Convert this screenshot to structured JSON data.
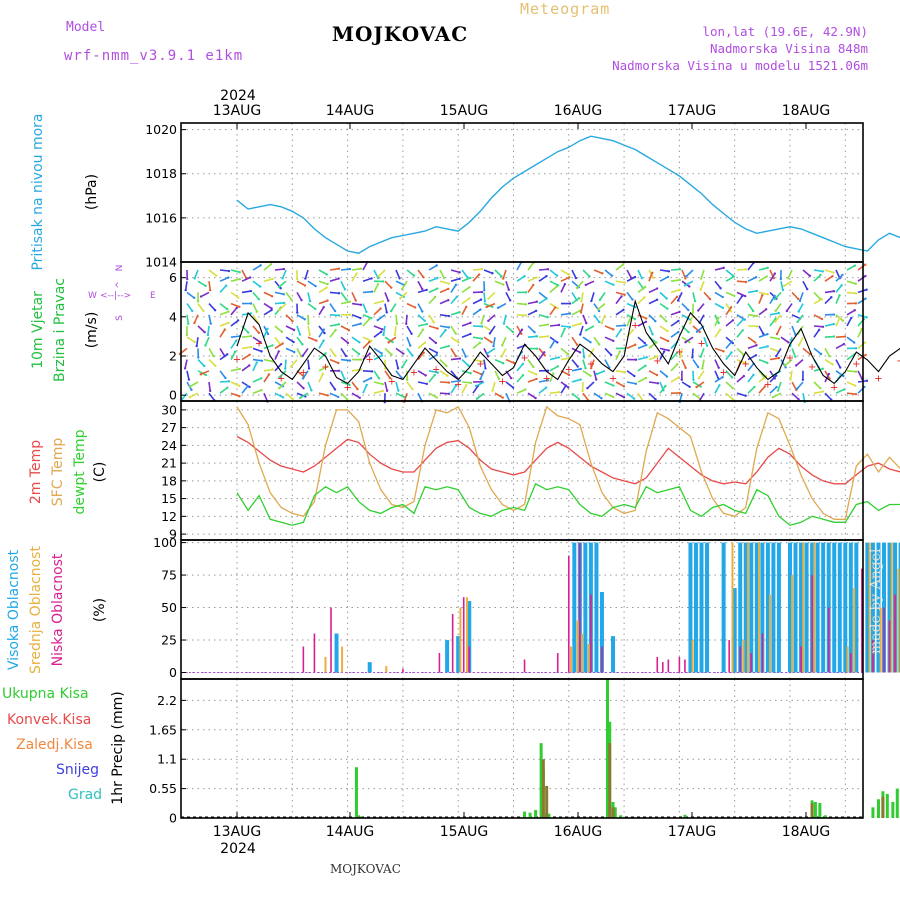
{
  "header": {
    "title": "MOJKOVAC",
    "subtitle": "Meteogram",
    "model_label": "Model",
    "model_name": "wrf-nmm_v3.9.1 e1km",
    "info_lines": [
      "lon,lat (19.6E, 42.9N)",
      "Nadmorska Visina 848m",
      "Nadmorska Visina u modelu 1521.06m"
    ]
  },
  "footer": "MOJKOVAC",
  "watermark": "made by Angel",
  "colors": {
    "pressure": "#29a8e0",
    "temp2m": "#e84a4a",
    "sfc": "#e0a850",
    "dewpt": "#30d030",
    "cloud_high": "#22a8e8",
    "cloud_mid": "#e8b040",
    "cloud_low": "#d82090",
    "precip_total": "#30cc30",
    "precip_conv": "#e84a4a",
    "precip_frozen": "#f08840",
    "snow": "#4040e0",
    "grad": "#30c0c0"
  },
  "chart_data": [
    {
      "type": "line",
      "panel": "pressure",
      "title": "",
      "ylabel_lines": [
        "Pritisak na nivou mora",
        "(hPa)"
      ],
      "x_labels_top": [
        "13AUG",
        "14AUG",
        "15AUG",
        "16AUG",
        "17AUG",
        "18AUG"
      ],
      "year_top": "2024",
      "ylim": [
        1014,
        1020.3
      ],
      "yticks": [
        "1014",
        "1016",
        "1018",
        "1020"
      ],
      "series": [
        {
          "x_days": [
            0,
            0.1,
            0.2,
            0.3,
            0.4,
            0.5,
            0.6,
            0.7,
            0.8,
            0.9,
            1.0,
            1.1,
            1.2,
            1.3,
            1.4,
            1.5,
            1.6,
            1.7,
            1.8,
            1.9,
            2.0,
            2.1,
            2.2,
            2.3,
            2.4,
            2.5,
            2.6,
            2.7,
            2.8,
            2.9,
            3.0,
            3.1,
            3.2,
            3.3,
            3.4,
            3.5,
            3.6,
            3.7,
            3.8,
            3.9,
            4.0,
            4.1,
            4.2,
            4.3,
            4.4,
            4.5,
            4.6,
            4.7,
            4.8,
            4.9,
            5.0,
            5.1,
            5.2,
            5.3,
            5.4,
            5.5,
            5.6,
            5.7,
            5.8,
            5.9,
            6.0
          ],
          "values": [
            1016.8,
            1016.4,
            1016.5,
            1016.6,
            1016.5,
            1016.3,
            1016.0,
            1015.5,
            1015.1,
            1014.8,
            1014.5,
            1014.4,
            1014.7,
            1014.9,
            1015.1,
            1015.2,
            1015.3,
            1015.4,
            1015.6,
            1015.5,
            1015.4,
            1015.8,
            1016.3,
            1016.9,
            1017.4,
            1017.8,
            1018.1,
            1018.4,
            1018.7,
            1019.0,
            1019.2,
            1019.5,
            1019.7,
            1019.6,
            1019.5,
            1019.3,
            1019.1,
            1018.8,
            1018.5,
            1018.2,
            1017.9,
            1017.5,
            1017.1,
            1016.6,
            1016.2,
            1015.8,
            1015.5,
            1015.3,
            1015.4,
            1015.5,
            1015.6,
            1015.5,
            1015.3,
            1015.1,
            1014.9,
            1014.7,
            1014.6,
            1014.5,
            1015.0,
            1015.3,
            1015.1
          ]
        }
      ]
    },
    {
      "type": "line",
      "panel": "wind",
      "title": "",
      "ylabel_lines": [
        "10m Vjetar",
        "Brzina i Pravac",
        "(m/s)"
      ],
      "compass_labels": [
        "W",
        "<--|-->",
        "E",
        "N",
        "^",
        "S"
      ],
      "ylim": [
        -0.3,
        6.8
      ],
      "yticks": [
        "0",
        "2",
        "4",
        "6"
      ],
      "series": [
        {
          "name": "brzina",
          "x_days": [
            0,
            0.1,
            0.2,
            0.3,
            0.4,
            0.5,
            0.6,
            0.7,
            0.8,
            0.9,
            1.0,
            1.1,
            1.2,
            1.3,
            1.4,
            1.5,
            1.6,
            1.7,
            1.8,
            1.9,
            2.0,
            2.1,
            2.2,
            2.3,
            2.4,
            2.5,
            2.6,
            2.7,
            2.8,
            2.9,
            3.0,
            3.1,
            3.2,
            3.3,
            3.4,
            3.5,
            3.6,
            3.7,
            3.8,
            3.9,
            4.0,
            4.1,
            4.2,
            4.3,
            4.4,
            4.5,
            4.6,
            4.7,
            4.8,
            4.9,
            5.0,
            5.1,
            5.2,
            5.3,
            5.4,
            5.5,
            5.6,
            5.7,
            5.8,
            5.9,
            6.0
          ],
          "values": [
            2.5,
            4.2,
            3.6,
            2.0,
            1.2,
            0.8,
            1.6,
            2.4,
            2.0,
            0.9,
            0.6,
            1.2,
            2.5,
            1.8,
            1.0,
            0.8,
            1.6,
            2.4,
            1.8,
            1.2,
            0.8,
            1.4,
            2.2,
            1.6,
            1.0,
            1.4,
            2.6,
            2.0,
            1.2,
            0.8,
            1.8,
            2.6,
            2.2,
            1.6,
            1.2,
            2.0,
            4.8,
            3.2,
            2.4,
            1.6,
            3.0,
            4.2,
            3.6,
            2.4,
            1.6,
            1.0,
            2.2,
            1.4,
            0.8,
            1.2,
            2.6,
            3.4,
            2.0,
            1.0,
            0.6,
            1.2,
            2.2,
            1.8,
            1.2,
            2.0,
            2.4
          ]
        }
      ]
    },
    {
      "type": "line",
      "panel": "temperature",
      "title": "",
      "ylabel_lines": [
        "2m Temp",
        "SFC Temp",
        "dewpt Temp",
        "(C)"
      ],
      "ylim": [
        8,
        31.5
      ],
      "yticks": [
        "9",
        "12",
        "15",
        "18",
        "21",
        "24",
        "27",
        "30"
      ],
      "series": [
        {
          "name": "2m Temp",
          "x_days": [
            0,
            0.1,
            0.2,
            0.3,
            0.4,
            0.5,
            0.6,
            0.7,
            0.8,
            0.9,
            1.0,
            1.1,
            1.2,
            1.3,
            1.4,
            1.5,
            1.6,
            1.7,
            1.8,
            1.9,
            2.0,
            2.1,
            2.2,
            2.3,
            2.4,
            2.5,
            2.6,
            2.7,
            2.8,
            2.9,
            3.0,
            3.1,
            3.2,
            3.3,
            3.4,
            3.5,
            3.6,
            3.7,
            3.8,
            3.9,
            4.0,
            4.1,
            4.2,
            4.3,
            4.4,
            4.5,
            4.6,
            4.7,
            4.8,
            4.9,
            5.0,
            5.1,
            5.2,
            5.3,
            5.4,
            5.5,
            5.6,
            5.7,
            5.8,
            5.9,
            6.0
          ],
          "values": [
            25.5,
            24.5,
            23.0,
            21.5,
            20.5,
            20.0,
            19.5,
            20.5,
            22.0,
            23.5,
            25.0,
            24.5,
            22.5,
            21.0,
            20.0,
            19.5,
            19.5,
            21.5,
            23.5,
            24.5,
            24.8,
            23.5,
            21.5,
            20.0,
            19.5,
            19.0,
            19.5,
            21.5,
            23.5,
            24.5,
            23.5,
            22.0,
            20.5,
            19.5,
            18.5,
            18.0,
            17.5,
            18.5,
            21.0,
            23.5,
            22.0,
            20.5,
            19.0,
            18.0,
            17.5,
            17.8,
            17.5,
            19.5,
            22.0,
            23.5,
            22.5,
            20.5,
            19.0,
            18.0,
            17.5,
            17.5,
            19.0,
            20.5,
            21.0,
            20.0,
            19.5
          ]
        },
        {
          "name": "SFC Temp",
          "x_days": [
            0,
            0.1,
            0.2,
            0.3,
            0.4,
            0.5,
            0.6,
            0.7,
            0.8,
            0.9,
            1.0,
            1.1,
            1.2,
            1.3,
            1.4,
            1.5,
            1.6,
            1.7,
            1.8,
            1.9,
            2.0,
            2.1,
            2.2,
            2.3,
            2.4,
            2.5,
            2.6,
            2.7,
            2.8,
            2.9,
            3.0,
            3.1,
            3.2,
            3.3,
            3.4,
            3.5,
            3.6,
            3.7,
            3.8,
            3.9,
            4.0,
            4.1,
            4.2,
            4.3,
            4.4,
            4.5,
            4.6,
            4.7,
            4.8,
            4.9,
            5.0,
            5.1,
            5.2,
            5.3,
            5.4,
            5.5,
            5.6,
            5.7,
            5.8,
            5.9,
            6.0
          ],
          "values": [
            30.5,
            27.5,
            21.0,
            16.0,
            13.5,
            12.5,
            12.0,
            14.5,
            24.0,
            30.0,
            30.0,
            28.0,
            21.0,
            16.5,
            14.0,
            13.5,
            14.5,
            24.0,
            30.0,
            29.5,
            30.5,
            27.0,
            20.5,
            16.5,
            14.0,
            13.0,
            14.0,
            24.5,
            30.5,
            29.0,
            28.5,
            27.5,
            21.0,
            16.0,
            13.5,
            12.5,
            13.0,
            23.0,
            29.5,
            28.5,
            27.0,
            25.5,
            19.5,
            15.0,
            12.5,
            12.0,
            13.5,
            23.5,
            29.5,
            28.5,
            24.0,
            19.0,
            15.0,
            12.5,
            11.5,
            11.5,
            20.5,
            22.5,
            19.5,
            22.0,
            20.0
          ]
        },
        {
          "name": "dewpt Temp",
          "x_days": [
            0,
            0.1,
            0.2,
            0.3,
            0.4,
            0.5,
            0.6,
            0.7,
            0.8,
            0.9,
            1.0,
            1.1,
            1.2,
            1.3,
            1.4,
            1.5,
            1.6,
            1.7,
            1.8,
            1.9,
            2.0,
            2.1,
            2.2,
            2.3,
            2.4,
            2.5,
            2.6,
            2.7,
            2.8,
            2.9,
            3.0,
            3.1,
            3.2,
            3.3,
            3.4,
            3.5,
            3.6,
            3.7,
            3.8,
            3.9,
            4.0,
            4.1,
            4.2,
            4.3,
            4.4,
            4.5,
            4.6,
            4.7,
            4.8,
            4.9,
            5.0,
            5.1,
            5.2,
            5.3,
            5.4,
            5.5,
            5.6,
            5.7,
            5.8,
            5.9,
            6.0
          ],
          "values": [
            16.0,
            13.0,
            15.5,
            11.5,
            11.0,
            10.5,
            11.0,
            15.5,
            17.0,
            16.0,
            17.0,
            14.5,
            13.0,
            12.5,
            13.5,
            14.0,
            12.5,
            17.0,
            16.5,
            17.0,
            16.5,
            13.5,
            12.5,
            12.0,
            13.0,
            13.5,
            13.0,
            17.5,
            16.5,
            17.0,
            16.5,
            14.0,
            12.5,
            12.0,
            13.5,
            14.0,
            13.5,
            17.0,
            16.0,
            16.5,
            17.0,
            13.0,
            12.0,
            13.5,
            14.0,
            13.0,
            12.5,
            16.5,
            15.5,
            12.0,
            10.5,
            11.0,
            12.0,
            11.5,
            11.0,
            11.0,
            14.0,
            14.5,
            13.0,
            14.0,
            14.0
          ]
        }
      ]
    },
    {
      "type": "bar",
      "panel": "clouds",
      "title": "",
      "ylabel_lines": [
        "Visoka Oblacnost",
        "Srednja Oblacnost",
        "Niska Oblacnost",
        "(%)"
      ],
      "ylim": [
        -5,
        102
      ],
      "yticks": [
        "0",
        "25",
        "50",
        "75",
        "100"
      ],
      "series": [
        {
          "name": "Visoka Oblacnost",
          "x_days": [
            0.9,
            1.2,
            1.9,
            2.0,
            2.1,
            3.05,
            3.1,
            3.15,
            3.2,
            3.25,
            3.3,
            3.4,
            4.1,
            4.15,
            4.2,
            4.25,
            4.4,
            4.5,
            4.55,
            4.6,
            4.65,
            4.7,
            4.75,
            4.8,
            4.85,
            4.9,
            5.0,
            5.05,
            5.1,
            5.15,
            5.2,
            5.25,
            5.3,
            5.35,
            5.4,
            5.45,
            5.5,
            5.55,
            5.6,
            5.7,
            5.75,
            5.8,
            5.85,
            5.9,
            5.95,
            6.0
          ],
          "values": [
            30,
            8,
            25,
            28,
            55,
            100,
            100,
            100,
            100,
            100,
            62,
            28,
            100,
            100,
            100,
            100,
            100,
            65,
            100,
            100,
            100,
            100,
            100,
            100,
            100,
            100,
            100,
            100,
            100,
            100,
            100,
            100,
            100,
            100,
            100,
            100,
            100,
            100,
            100,
            100,
            100,
            100,
            100,
            100,
            100,
            100
          ]
        },
        {
          "name": "Srednja Oblacnost",
          "x_days": [
            0.8,
            0.95,
            1.35,
            2.02,
            2.08,
            3.02,
            3.08,
            3.12,
            3.18,
            4.12,
            4.48,
            4.58,
            4.62,
            4.72,
            4.82,
            5.02,
            5.12,
            5.22,
            5.52,
            5.58,
            5.72,
            5.82,
            5.92,
            5.98
          ],
          "values": [
            12,
            20,
            5,
            50,
            58,
            20,
            40,
            30,
            22,
            25,
            100,
            25,
            100,
            100,
            60,
            75,
            100,
            100,
            20,
            65,
            100,
            50,
            100,
            80
          ]
        },
        {
          "name": "Niska Oblacnost",
          "x_days": [
            0.6,
            0.7,
            0.85,
            1.5,
            1.83,
            1.95,
            2.05,
            2.1,
            2.6,
            2.9,
            3.0,
            3.1,
            3.2,
            3.3,
            3.8,
            3.85,
            3.9,
            4.0,
            4.05,
            4.45,
            4.55,
            4.65,
            4.75,
            5.1,
            5.2,
            5.35,
            5.55,
            5.65,
            5.75,
            5.85,
            5.9,
            5.95
          ],
          "values": [
            20,
            30,
            50,
            3,
            15,
            45,
            58,
            20,
            10,
            15,
            90,
            100,
            60,
            20,
            12,
            8,
            10,
            12,
            10,
            25,
            20,
            15,
            30,
            20,
            75,
            50,
            15,
            80,
            25,
            50,
            40,
            60
          ]
        }
      ]
    },
    {
      "type": "bar",
      "panel": "precipitation",
      "title": "",
      "ylabel_lines": [
        "1hr Precip (mm)"
      ],
      "legend": [
        "Ukupna Kisa",
        "Konvek.Kisa",
        "Zaledj.Kisa",
        "Snijeg",
        "Grad"
      ],
      "x_labels_bottom": [
        "13AUG",
        "14AUG",
        "15AUG",
        "16AUG",
        "17AUG",
        "18AUG"
      ],
      "year_bottom": "2024",
      "ylim": [
        0,
        2.6
      ],
      "yticks": [
        "0",
        "0.55",
        "1.1",
        "1.65",
        "2.2"
      ],
      "series": [
        {
          "name": "Ukupna Kisa",
          "x_days": [
            1.08,
            1.1,
            1.12,
            2.6,
            2.65,
            2.7,
            2.75,
            2.77,
            2.8,
            2.82,
            3.35,
            3.37,
            3.4,
            3.42,
            3.47,
            4.05,
            5.2,
            5.23,
            5.27,
            5.32,
            5.75,
            5.8,
            5.84,
            5.88,
            5.93,
            5.97
          ],
          "values": [
            0.95,
            0.05,
            0.03,
            0.12,
            0.1,
            0.15,
            1.4,
            0.9,
            0.1,
            0.08,
            2.6,
            1.8,
            0.3,
            0.2,
            0.05,
            0.06,
            0.33,
            0.3,
            0.28,
            0.05,
            0.2,
            0.35,
            0.5,
            0.45,
            0.3,
            0.55
          ]
        },
        {
          "name": "Konvek.Kisa",
          "x_days": [
            1.1,
            2.77,
            2.8,
            3.37,
            3.4,
            5.2,
            5.84
          ],
          "values": [
            0.03,
            1.1,
            0.6,
            1.4,
            0.2,
            0.28,
            0.4
          ]
        }
      ]
    }
  ]
}
